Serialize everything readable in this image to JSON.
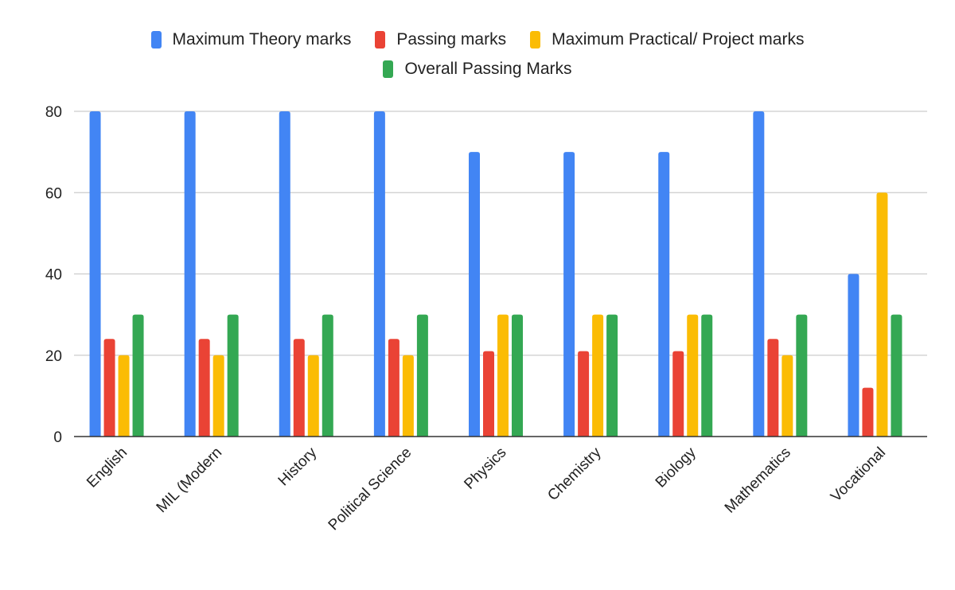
{
  "chart_data": {
    "type": "bar",
    "title": "",
    "xlabel": "",
    "ylabel": "",
    "ylim": [
      0,
      80
    ],
    "yticks": [
      0,
      20,
      40,
      60,
      80
    ],
    "grid": true,
    "legend_position": "top",
    "categories": [
      "English",
      "MIL (Modern",
      "History",
      "Political Science",
      "Physics",
      "Chemistry",
      "Biology",
      "Mathematics",
      "Vocational"
    ],
    "series": [
      {
        "name": "Maximum Theory marks",
        "color": "#4285F4",
        "values": [
          80,
          80,
          80,
          80,
          70,
          70,
          70,
          80,
          40
        ]
      },
      {
        "name": "Passing marks",
        "color": "#EA4335",
        "values": [
          24,
          24,
          24,
          24,
          21,
          21,
          21,
          24,
          12
        ]
      },
      {
        "name": "Maximum Practical/ Project marks",
        "color": "#FBBC04",
        "values": [
          20,
          20,
          20,
          20,
          30,
          30,
          30,
          20,
          60
        ]
      },
      {
        "name": "Overall Passing Marks",
        "color": "#34A853",
        "values": [
          30,
          30,
          30,
          30,
          30,
          30,
          30,
          30,
          30
        ]
      }
    ]
  },
  "legend": {
    "items": [
      {
        "label": "Maximum Theory marks",
        "color": "#4285F4"
      },
      {
        "label": "Passing marks",
        "color": "#EA4335"
      },
      {
        "label": "Maximum Practical/ Project marks",
        "color": "#FBBC04"
      },
      {
        "label": "Overall Passing Marks",
        "color": "#34A853"
      }
    ]
  }
}
